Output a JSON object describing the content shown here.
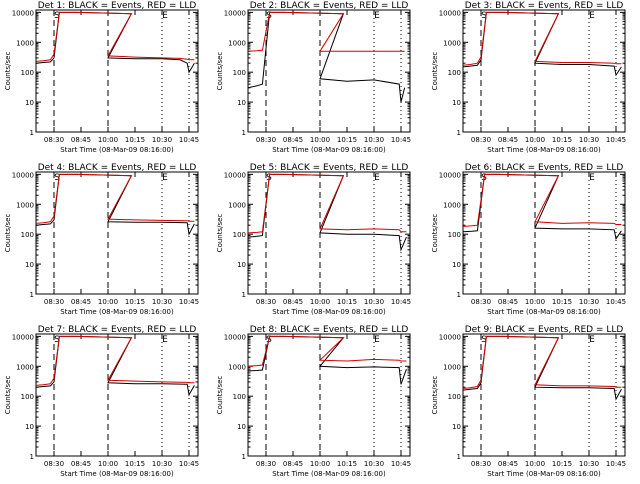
{
  "chart_data": [
    {
      "type": "line",
      "title": "Det 1: BLACK = Events, RED = LLD",
      "ylabel": "Counts/sec",
      "xlabel": "Start Time (08-Mar-09 08:16:00)",
      "yscale": "log",
      "ylim": [
        1,
        12000
      ],
      "xlim_minutes": [
        -5,
        37
      ],
      "x_ticks": [
        "08:30",
        "08:45",
        "10:00",
        "10:15",
        "10:30",
        "10:45"
      ],
      "y_ticks": [
        "1",
        "10",
        "100",
        "1000",
        "10000"
      ],
      "markers": [
        {
          "label": "S",
          "x": "08:30"
        },
        {
          "label": "E",
          "x": "10:30"
        }
      ],
      "dashed_lines": [
        "08:30",
        "10:00"
      ],
      "dotted_lines": [
        "10:30",
        "10:45"
      ],
      "series": [
        {
          "color": "#000000",
          "x": [
            "08:20",
            "08:24",
            "08:28",
            "08:30",
            "08:33",
            "08:40",
            "08:43",
            "09:58",
            "10:00",
            "10:15",
            "10:30",
            "10:40",
            "10:44",
            "10:45",
            "10:48"
          ],
          "y": [
            200,
            210,
            220,
            300,
            10000,
            10000,
            10000,
            9000,
            300,
            280,
            280,
            260,
            200,
            100,
            200
          ]
        },
        {
          "color": "#d40000",
          "x": [
            "08:20",
            "08:24",
            "08:28",
            "08:30",
            "08:33",
            "08:40",
            "08:43",
            "09:58",
            "10:00",
            "10:15",
            "10:30",
            "10:40",
            "10:44",
            "10:45",
            "10:48"
          ],
          "y": [
            230,
            240,
            260,
            400,
            10000,
            10000,
            10000,
            9000,
            350,
            320,
            300,
            290,
            270,
            260,
            260
          ]
        }
      ]
    },
    {
      "type": "line",
      "title": "Det 2: BLACK = Events, RED = LLD",
      "ylabel": "Counts/sec",
      "xlabel": "Start Time (08-Mar-09 08:16:00)",
      "yscale": "log",
      "ylim": [
        1,
        12000
      ],
      "x_ticks": [
        "08:30",
        "08:45",
        "10:00",
        "10:15",
        "10:30",
        "10:45"
      ],
      "y_ticks": [
        "1",
        "10",
        "100",
        "1000",
        "10000"
      ],
      "markers": [
        {
          "label": "S",
          "x": "08:30"
        },
        {
          "label": "E",
          "x": "10:30"
        }
      ],
      "dashed_lines": [
        "08:30",
        "10:00"
      ],
      "dotted_lines": [
        "10:30",
        "10:45"
      ],
      "series": [
        {
          "color": "#000000",
          "x": [
            "08:20",
            "08:25",
            "08:28",
            "08:32",
            "08:40",
            "09:58",
            "10:00",
            "10:15",
            "10:30",
            "10:44",
            "10:45",
            "10:47"
          ],
          "y": [
            30,
            35,
            40,
            10000,
            10000,
            9000,
            60,
            50,
            55,
            40,
            10,
            30
          ]
        },
        {
          "color": "#d40000",
          "x": [
            "08:20",
            "08:25",
            "08:28",
            "08:32",
            "08:40",
            "09:58",
            "10:00",
            "10:15",
            "10:30",
            "10:44",
            "10:45",
            "10:47"
          ],
          "y": [
            500,
            520,
            540,
            10000,
            10000,
            9000,
            500,
            500,
            500,
            500,
            500,
            500
          ]
        }
      ]
    },
    {
      "type": "line",
      "title": "Det 3: BLACK = Events, RED = LLD",
      "ylabel": "Counts/sec",
      "xlabel": "Start Time (08-Mar-09 08:16:00)",
      "yscale": "log",
      "ylim": [
        1,
        12000
      ],
      "x_ticks": [
        "08:30",
        "08:45",
        "10:00",
        "10:15",
        "10:30",
        "10:45"
      ],
      "y_ticks": [
        "1",
        "10",
        "100",
        "1000",
        "10000"
      ],
      "markers": [
        {
          "label": "S",
          "x": "08:30"
        },
        {
          "label": "E",
          "x": "10:30"
        }
      ],
      "dashed_lines": [
        "08:30",
        "10:00"
      ],
      "dotted_lines": [
        "10:30",
        "10:45"
      ],
      "series": [
        {
          "color": "#000000",
          "x": [
            "08:20",
            "08:24",
            "08:28",
            "08:30",
            "08:33",
            "08:40",
            "08:43",
            "09:58",
            "10:00",
            "10:15",
            "10:30",
            "10:44",
            "10:45",
            "10:48"
          ],
          "y": [
            150,
            160,
            170,
            260,
            10000,
            10000,
            10000,
            9000,
            200,
            180,
            180,
            160,
            80,
            150
          ]
        },
        {
          "color": "#d40000",
          "x": [
            "08:20",
            "08:24",
            "08:28",
            "08:30",
            "08:33",
            "08:40",
            "08:43",
            "09:58",
            "10:00",
            "10:15",
            "10:30",
            "10:44",
            "10:45",
            "10:48"
          ],
          "y": [
            170,
            180,
            200,
            330,
            10000,
            10000,
            10000,
            9000,
            230,
            210,
            210,
            200,
            190,
            190
          ]
        }
      ]
    },
    {
      "type": "line",
      "title": "Det 4: BLACK = Events, RED = LLD",
      "ylabel": "Counts/sec",
      "xlabel": "Start Time (08-Mar-09 08:16:00)",
      "yscale": "log",
      "ylim": [
        1,
        12000
      ],
      "x_ticks": [
        "08:30",
        "08:45",
        "10:00",
        "10:15",
        "10:30",
        "10:45"
      ],
      "y_ticks": [
        "1",
        "10",
        "100",
        "1000",
        "10000"
      ],
      "markers": [
        {
          "label": "S",
          "x": "08:30"
        },
        {
          "label": "E",
          "x": "10:30"
        }
      ],
      "dashed_lines": [
        "08:30",
        "10:00"
      ],
      "dotted_lines": [
        "10:30",
        "10:45"
      ],
      "series": [
        {
          "color": "#000000",
          "x": [
            "08:20",
            "08:24",
            "08:28",
            "08:30",
            "08:33",
            "08:40",
            "08:43",
            "09:58",
            "10:00",
            "10:15",
            "10:30",
            "10:44",
            "10:45",
            "10:48"
          ],
          "y": [
            200,
            210,
            220,
            300,
            10000,
            10000,
            10000,
            9000,
            260,
            250,
            250,
            240,
            100,
            220
          ]
        },
        {
          "color": "#d40000",
          "x": [
            "08:20",
            "08:24",
            "08:28",
            "08:30",
            "08:33",
            "08:40",
            "08:43",
            "09:58",
            "10:00",
            "10:15",
            "10:30",
            "10:44",
            "10:45",
            "10:48"
          ],
          "y": [
            230,
            240,
            260,
            400,
            10000,
            10000,
            10000,
            9000,
            320,
            300,
            290,
            280,
            270,
            270
          ]
        }
      ]
    },
    {
      "type": "line",
      "title": "Det 5: BLACK = Events, RED = LLD",
      "ylabel": "Counts/sec",
      "xlabel": "Start Time (08-Mar-09 08:16:00)",
      "yscale": "log",
      "ylim": [
        1,
        12000
      ],
      "x_ticks": [
        "08:30",
        "08:45",
        "10:00",
        "10:15",
        "10:30",
        "10:45"
      ],
      "y_ticks": [
        "1",
        "10",
        "100",
        "1000",
        "10000"
      ],
      "markers": [
        {
          "label": "S",
          "x": "08:30"
        },
        {
          "label": "E",
          "x": "10:30"
        }
      ],
      "dashed_lines": [
        "08:30",
        "10:00"
      ],
      "dotted_lines": [
        "10:30",
        "10:45"
      ],
      "series": [
        {
          "color": "#000000",
          "x": [
            "08:20",
            "08:25",
            "08:28",
            "08:32",
            "08:40",
            "09:58",
            "10:00",
            "10:15",
            "10:30",
            "10:44",
            "10:45",
            "10:48"
          ],
          "y": [
            80,
            85,
            90,
            10000,
            10000,
            9000,
            110,
            100,
            100,
            90,
            30,
            80
          ]
        },
        {
          "color": "#d40000",
          "x": [
            "08:20",
            "08:25",
            "08:28",
            "08:32",
            "08:40",
            "09:58",
            "10:00",
            "10:15",
            "10:30",
            "10:44",
            "10:45",
            "10:48"
          ],
          "y": [
            110,
            115,
            120,
            10000,
            10000,
            9000,
            150,
            140,
            150,
            140,
            120,
            120
          ]
        }
      ]
    },
    {
      "type": "line",
      "title": "Det 6: BLACK = Events, RED = LLD",
      "ylabel": "Counts/sec",
      "xlabel": "Start Time (08-Mar-09 08:16:00)",
      "yscale": "log",
      "ylim": [
        1,
        12000
      ],
      "x_ticks": [
        "08:30",
        "08:45",
        "10:00",
        "10:15",
        "10:30",
        "10:45"
      ],
      "y_ticks": [
        "1",
        "10",
        "100",
        "1000",
        "10000"
      ],
      "markers": [
        {
          "label": "S",
          "x": "08:30"
        },
        {
          "label": "E",
          "x": "10:30"
        }
      ],
      "dashed_lines": [
        "08:30",
        "10:00"
      ],
      "dotted_lines": [
        "10:30",
        "10:45"
      ],
      "series": [
        {
          "color": "#000000",
          "x": [
            "08:20",
            "08:25",
            "08:28",
            "08:32",
            "08:40",
            "09:58",
            "10:00",
            "10:15",
            "10:30",
            "10:44",
            "10:45",
            "10:48"
          ],
          "y": [
            120,
            125,
            130,
            10000,
            10000,
            9000,
            160,
            150,
            150,
            140,
            70,
            130
          ]
        },
        {
          "color": "#d40000",
          "x": [
            "08:20",
            "08:25",
            "08:28",
            "08:32",
            "08:40",
            "09:58",
            "10:00",
            "10:15",
            "10:30",
            "10:44",
            "10:45",
            "10:48"
          ],
          "y": [
            180,
            190,
            200,
            10000,
            10000,
            9000,
            260,
            230,
            240,
            230,
            210,
            210
          ]
        }
      ]
    },
    {
      "type": "line",
      "title": "Det 7: BLACK = Events, RED = LLD",
      "ylabel": "Counts/sec",
      "xlabel": "Start Time (08-Mar-09 08:16:00)",
      "yscale": "log",
      "ylim": [
        1,
        12000
      ],
      "x_ticks": [
        "08:30",
        "08:45",
        "10:00",
        "10:15",
        "10:30",
        "10:45"
      ],
      "y_ticks": [
        "1",
        "10",
        "100",
        "1000",
        "10000"
      ],
      "markers": [
        {
          "label": "S",
          "x": "08:30"
        },
        {
          "label": "E",
          "x": "10:30"
        }
      ],
      "dashed_lines": [
        "08:30",
        "10:00"
      ],
      "dotted_lines": [
        "10:30",
        "10:45"
      ],
      "series": [
        {
          "color": "#000000",
          "x": [
            "08:20",
            "08:24",
            "08:28",
            "08:30",
            "08:33",
            "08:40",
            "08:43",
            "09:58",
            "10:00",
            "10:15",
            "10:30",
            "10:44",
            "10:45",
            "10:48"
          ],
          "y": [
            200,
            210,
            220,
            300,
            10000,
            10000,
            10000,
            9000,
            280,
            260,
            260,
            250,
            110,
            230
          ]
        },
        {
          "color": "#d40000",
          "x": [
            "08:20",
            "08:24",
            "08:28",
            "08:30",
            "08:33",
            "08:40",
            "08:43",
            "09:58",
            "10:00",
            "10:15",
            "10:30",
            "10:44",
            "10:45",
            "10:48"
          ],
          "y": [
            230,
            240,
            260,
            400,
            10000,
            10000,
            10000,
            9000,
            340,
            320,
            300,
            290,
            280,
            280
          ]
        }
      ]
    },
    {
      "type": "line",
      "title": "Det 8: BLACK = Events, RED = LLD",
      "ylabel": "Counts/sec",
      "xlabel": "Start Time (08-Mar-09 08:16:00)",
      "yscale": "log",
      "ylim": [
        1,
        12000
      ],
      "x_ticks": [
        "08:30",
        "08:45",
        "10:00",
        "10:15",
        "10:30",
        "10:45"
      ],
      "y_ticks": [
        "1",
        "10",
        "100",
        "1000",
        "10000"
      ],
      "markers": [
        {
          "label": "S",
          "x": "08:30"
        },
        {
          "label": "E",
          "x": "10:30"
        }
      ],
      "dashed_lines": [
        "08:30",
        "10:00"
      ],
      "dotted_lines": [
        "10:30",
        "10:45"
      ],
      "series": [
        {
          "color": "#000000",
          "x": [
            "08:20",
            "08:25",
            "08:28",
            "08:32",
            "08:40",
            "09:58",
            "10:00",
            "10:15",
            "10:30",
            "10:44",
            "10:45",
            "10:48"
          ],
          "y": [
            700,
            720,
            750,
            10000,
            10000,
            9000,
            1000,
            900,
            950,
            900,
            250,
            800
          ]
        },
        {
          "color": "#d40000",
          "x": [
            "08:20",
            "08:25",
            "08:28",
            "08:32",
            "08:40",
            "09:58",
            "10:00",
            "10:15",
            "10:30",
            "10:44",
            "10:45",
            "10:48"
          ],
          "y": [
            1000,
            1050,
            1100,
            10000,
            10000,
            9000,
            1600,
            1500,
            1700,
            1600,
            1500,
            1500
          ]
        }
      ]
    },
    {
      "type": "line",
      "title": "Det 9: BLACK = Events, RED = LLD",
      "ylabel": "Counts/sec",
      "xlabel": "Start Time (08-Mar-09 08:16:00)",
      "yscale": "log",
      "ylim": [
        1,
        12000
      ],
      "x_ticks": [
        "08:30",
        "08:45",
        "10:00",
        "10:15",
        "10:30",
        "10:45"
      ],
      "y_ticks": [
        "1",
        "10",
        "100",
        "1000",
        "10000"
      ],
      "markers": [
        {
          "label": "S",
          "x": "08:30"
        },
        {
          "label": "E",
          "x": "10:30"
        }
      ],
      "dashed_lines": [
        "08:30",
        "10:00"
      ],
      "dotted_lines": [
        "10:30",
        "10:45"
      ],
      "series": [
        {
          "color": "#000000",
          "x": [
            "08:20",
            "08:24",
            "08:28",
            "08:30",
            "08:33",
            "08:40",
            "08:43",
            "09:58",
            "10:00",
            "10:15",
            "10:30",
            "10:44",
            "10:45",
            "10:48"
          ],
          "y": [
            160,
            170,
            180,
            280,
            10000,
            10000,
            10000,
            9000,
            200,
            190,
            190,
            180,
            80,
            170
          ]
        },
        {
          "color": "#d40000",
          "x": [
            "08:20",
            "08:24",
            "08:28",
            "08:30",
            "08:33",
            "08:40",
            "08:43",
            "09:58",
            "10:00",
            "10:15",
            "10:30",
            "10:44",
            "10:45",
            "10:48"
          ],
          "y": [
            180,
            190,
            210,
            350,
            10000,
            10000,
            10000,
            9000,
            240,
            220,
            220,
            210,
            200,
            200
          ]
        }
      ]
    }
  ]
}
